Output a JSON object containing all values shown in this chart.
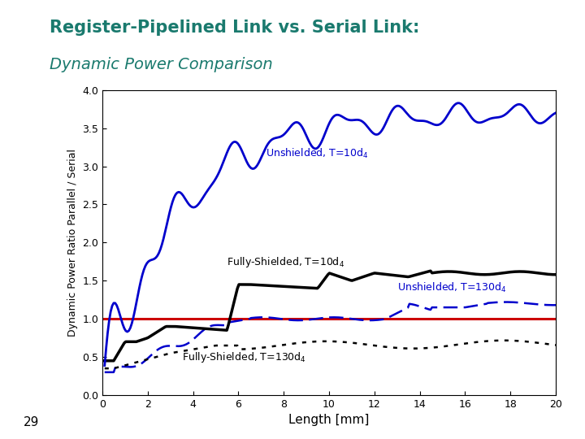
{
  "title_line1": "Register-Pipelined Link vs. Serial Link:",
  "title_line2": "Dynamic Power Comparison",
  "title_color": "#1a7a6e",
  "xlabel": "Length [mm]",
  "ylabel": "Dynamic Power Ratio Parallel / Serial",
  "xlim": [
    0,
    20
  ],
  "ylim": [
    0,
    4
  ],
  "yticks": [
    0,
    0.5,
    1,
    1.5,
    2,
    2.5,
    3,
    3.5,
    4
  ],
  "xticks": [
    0,
    2,
    4,
    6,
    8,
    10,
    12,
    14,
    16,
    18,
    20
  ],
  "bg_color": "#ffffff",
  "plot_bg_color": "#ffffff",
  "color_unshielded_T10": "#0000cc",
  "color_fully_shielded_T10": "#000000",
  "color_unshielded_T130": "#0000cc",
  "color_fully_shielded_T130": "#000000",
  "color_reference": "#cc0000",
  "page_number": "29",
  "ann_unsh10_x": 7.2,
  "ann_unsh10_y": 3.08,
  "ann_fs10_x": 5.5,
  "ann_fs10_y": 1.65,
  "ann_unsh130_x": 13.0,
  "ann_unsh130_y": 1.32,
  "ann_fs130_x": 3.5,
  "ann_fs130_y": 0.41
}
